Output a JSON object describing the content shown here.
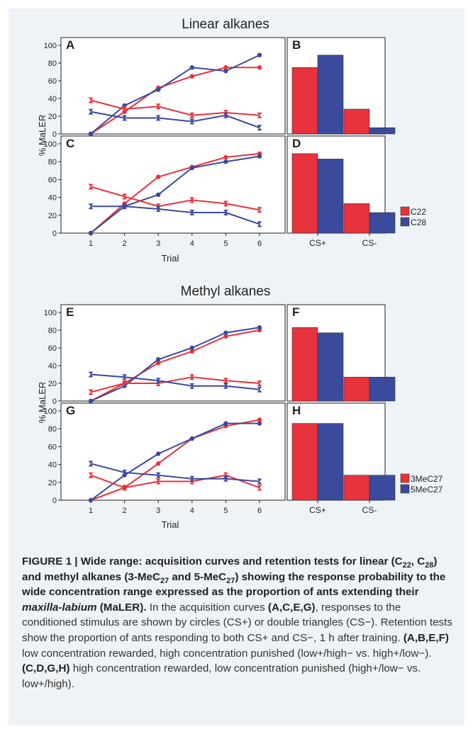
{
  "colors": {
    "red": "#e8323c",
    "blue": "#3a4a9c",
    "axis": "#222222",
    "caption_text": "#333333",
    "background": "#eef3f8"
  },
  "chart_data": [
    {
      "section_title": "Linear alkanes",
      "y_axis_label": "% MaLER",
      "x_axis_label": "Trial",
      "panels": [
        {
          "letter": "A",
          "type": "line",
          "x": [
            1,
            2,
            3,
            4,
            5,
            6
          ],
          "ylim": [
            0,
            100
          ],
          "y_ticks": [
            "0",
            "20",
            "40",
            "60",
            "80",
            "100"
          ],
          "series": [
            {
              "name": "C22",
              "stimulus": "CS+",
              "marker": "circle",
              "color": "red",
              "values": [
                0,
                25,
                52,
                65,
                75,
                75
              ]
            },
            {
              "name": "C28",
              "stimulus": "CS+",
              "marker": "circle",
              "color": "blue",
              "values": [
                0,
                32,
                50,
                75,
                71,
                89
              ]
            },
            {
              "name": "C22",
              "stimulus": "CS-",
              "marker": "double-triangle",
              "color": "red",
              "values": [
                38,
                28,
                31,
                21,
                24,
                21
              ]
            },
            {
              "name": "C28",
              "stimulus": "CS-",
              "marker": "double-triangle",
              "color": "blue",
              "values": [
                25,
                18,
                18,
                14,
                21,
                7
              ]
            }
          ]
        },
        {
          "letter": "B",
          "type": "bar",
          "categories": [
            "CS+",
            "CS-"
          ],
          "ylim": [
            0,
            100
          ],
          "series": [
            {
              "name": "C22",
              "color": "red",
              "values": [
                75,
                28
              ]
            },
            {
              "name": "C28",
              "color": "blue",
              "values": [
                89,
                7
              ]
            }
          ]
        },
        {
          "letter": "C",
          "type": "line",
          "x": [
            1,
            2,
            3,
            4,
            5,
            6
          ],
          "ylim": [
            0,
            100
          ],
          "x_ticks": [
            "1",
            "2",
            "3",
            "4",
            "5",
            "6"
          ],
          "y_ticks": [
            "0",
            "20",
            "40",
            "60",
            "80",
            "100"
          ],
          "series": [
            {
              "name": "C22",
              "stimulus": "CS+",
              "marker": "circle",
              "color": "red",
              "values": [
                0,
                33,
                63,
                74,
                85,
                89
              ]
            },
            {
              "name": "C28",
              "stimulus": "CS+",
              "marker": "circle",
              "color": "blue",
              "values": [
                0,
                30,
                43,
                73,
                80,
                86
              ]
            },
            {
              "name": "C22",
              "stimulus": "CS-",
              "marker": "double-triangle",
              "color": "red",
              "values": [
                52,
                41,
                30,
                37,
                33,
                26
              ]
            },
            {
              "name": "C28",
              "stimulus": "CS-",
              "marker": "double-triangle",
              "color": "blue",
              "values": [
                30,
                30,
                27,
                23,
                23,
                10
              ]
            }
          ]
        },
        {
          "letter": "D",
          "type": "bar",
          "categories": [
            "CS+",
            "CS-"
          ],
          "ylim": [
            0,
            100
          ],
          "series": [
            {
              "name": "C22",
              "color": "red",
              "values": [
                89,
                33
              ]
            },
            {
              "name": "C28",
              "color": "blue",
              "values": [
                83,
                23
              ]
            }
          ]
        }
      ],
      "legend": [
        {
          "label": "C22",
          "color": "red"
        },
        {
          "label": "C28",
          "color": "blue"
        }
      ],
      "bar_x_labels": [
        "CS+",
        "CS-"
      ]
    },
    {
      "section_title": "Methyl alkanes",
      "y_axis_label": "% MaLER",
      "x_axis_label": "Trial",
      "panels": [
        {
          "letter": "E",
          "type": "line",
          "x": [
            1,
            2,
            3,
            4,
            5,
            6
          ],
          "ylim": [
            0,
            100
          ],
          "y_ticks": [
            "0",
            "20",
            "40",
            "60",
            "80",
            "100"
          ],
          "series": [
            {
              "name": "3MeC27",
              "stimulus": "CS+",
              "marker": "circle",
              "color": "red",
              "values": [
                0,
                20,
                43,
                56,
                73,
                80
              ]
            },
            {
              "name": "5MeC27",
              "stimulus": "CS+",
              "marker": "circle",
              "color": "blue",
              "values": [
                0,
                17,
                47,
                60,
                77,
                83
              ]
            },
            {
              "name": "3MeC27",
              "stimulus": "CS-",
              "marker": "double-triangle",
              "color": "red",
              "values": [
                10,
                20,
                20,
                27,
                23,
                20
              ]
            },
            {
              "name": "5MeC27",
              "stimulus": "CS-",
              "marker": "double-triangle",
              "color": "blue",
              "values": [
                30,
                27,
                23,
                17,
                17,
                13
              ]
            }
          ]
        },
        {
          "letter": "F",
          "type": "bar",
          "categories": [
            "CS+",
            "CS-"
          ],
          "ylim": [
            0,
            100
          ],
          "series": [
            {
              "name": "3MeC27",
              "color": "red",
              "values": [
                83,
                27
              ]
            },
            {
              "name": "5MeC27",
              "color": "blue",
              "values": [
                77,
                27
              ]
            }
          ]
        },
        {
          "letter": "G",
          "type": "line",
          "x": [
            1,
            2,
            3,
            4,
            5,
            6
          ],
          "ylim": [
            0,
            100
          ],
          "x_ticks": [
            "1",
            "2",
            "3",
            "4",
            "5",
            "6"
          ],
          "y_ticks": [
            "0",
            "20",
            "40",
            "60",
            "80",
            "100"
          ],
          "series": [
            {
              "name": "3MeC27",
              "stimulus": "CS+",
              "marker": "circle",
              "color": "red",
              "values": [
                0,
                14,
                41,
                69,
                83,
                90
              ]
            },
            {
              "name": "5MeC27",
              "stimulus": "CS+",
              "marker": "circle",
              "color": "blue",
              "values": [
                0,
                28,
                52,
                69,
                86,
                86
              ]
            },
            {
              "name": "3MeC27",
              "stimulus": "CS-",
              "marker": "double-triangle",
              "color": "red",
              "values": [
                28,
                14,
                21,
                21,
                28,
                14
              ]
            },
            {
              "name": "5MeC27",
              "stimulus": "CS-",
              "marker": "double-triangle",
              "color": "blue",
              "values": [
                41,
                31,
                28,
                24,
                24,
                21
              ]
            }
          ]
        },
        {
          "letter": "H",
          "type": "bar",
          "categories": [
            "CS+",
            "CS-"
          ],
          "ylim": [
            0,
            100
          ],
          "series": [
            {
              "name": "3MeC27",
              "color": "red",
              "values": [
                86,
                28
              ]
            },
            {
              "name": "5MeC27",
              "color": "blue",
              "values": [
                86,
                28
              ]
            }
          ]
        }
      ],
      "legend": [
        {
          "label": "3MeC27",
          "color": "red"
        },
        {
          "label": "5MeC27",
          "color": "blue"
        }
      ],
      "bar_x_labels": [
        "CS+",
        "CS-"
      ]
    }
  ],
  "caption": {
    "heading": {
      "p1": "FIGURE 1 | Wide range: acquisition curves and retention tests for linear (C",
      "s1": "22",
      "p2": ", C",
      "s2": "28",
      "p3": ") and methyl alkanes (3-MeC",
      "s3": "27",
      "p4": " and 5-MeC",
      "s4": "27",
      "p5": ") showing the response probability to the wide concentration range expressed as the proportion of ants extending their ",
      "italic": "maxilla-labium",
      "p6": " (MaLER)."
    },
    "body": {
      "t1": " In the acquisition curves ",
      "b1": "(A,C,E,G)",
      "t2": ", responses to the conditioned stimulus are shown by circles (CS+) or double triangles (CS−). Retention tests show the proportion of ants responding to both CS+ and CS−, 1 h after training. ",
      "b2": "(A,B,E,F)",
      "t3": " low concentration rewarded, high concentration punished (low+/high− vs. high+/low−). ",
      "b3": "(C,D,G,H)",
      "t4": " high concentration rewarded, low concentration punished (high+/low− vs. low+/high)."
    }
  }
}
